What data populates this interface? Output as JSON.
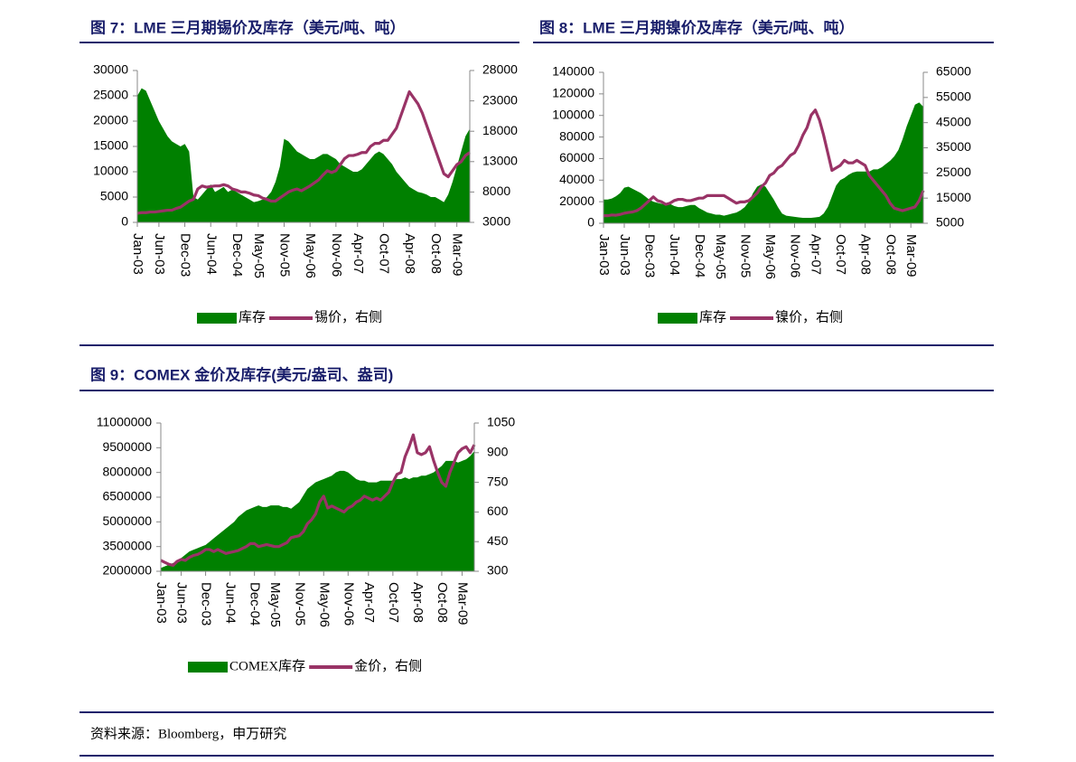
{
  "chart_data": [
    {
      "type": "combo",
      "title": "图 7：LME 三月期锡价及库存（美元/吨、吨）",
      "categories": [
        "Jan-03",
        null,
        null,
        null,
        null,
        "Jun-03",
        null,
        null,
        null,
        null,
        null,
        "Dec-03",
        null,
        null,
        null,
        null,
        null,
        "Jun-04",
        null,
        null,
        null,
        null,
        null,
        "Dec-04",
        null,
        null,
        null,
        null,
        "May-05",
        null,
        null,
        null,
        null,
        null,
        "Nov-05",
        null,
        null,
        null,
        null,
        null,
        "May-06",
        null,
        null,
        null,
        null,
        null,
        "Nov-06",
        null,
        null,
        null,
        null,
        "Apr-07",
        null,
        null,
        null,
        null,
        null,
        "Oct-07",
        null,
        null,
        null,
        null,
        null,
        "Apr-08",
        null,
        null,
        null,
        null,
        null,
        "Oct-08",
        null,
        null,
        null,
        null,
        "Mar-09",
        null,
        null,
        null
      ],
      "ylim": [
        0,
        30000
      ],
      "yticks": [
        0,
        5000,
        10000,
        15000,
        20000,
        25000,
        30000
      ],
      "y2lim": [
        3000,
        28000
      ],
      "y2ticks": [
        3000,
        8000,
        13000,
        18000,
        23000,
        28000
      ],
      "series": [
        {
          "name": "库存",
          "type": "area",
          "color": "#008000",
          "values": [
            25000,
            26500,
            26000,
            24000,
            22000,
            20000,
            18500,
            17000,
            16000,
            15500,
            15000,
            15500,
            14000,
            5000,
            4500,
            5500,
            6500,
            7500,
            6000,
            6500,
            7000,
            6000,
            6500,
            6000,
            5500,
            5000,
            4500,
            4000,
            4200,
            4500,
            5000,
            6000,
            8000,
            11000,
            16500,
            16000,
            15000,
            14000,
            13500,
            13000,
            12500,
            12500,
            13000,
            13500,
            13500,
            13000,
            12500,
            11500,
            11000,
            10500,
            10000,
            10000,
            10500,
            11500,
            12500,
            13500,
            14000,
            13500,
            12500,
            11500,
            10000,
            9000,
            8000,
            7000,
            6500,
            6000,
            5800,
            5500,
            5000,
            5000,
            4500,
            4000,
            5500,
            8000,
            11000,
            14000,
            17000,
            18500
          ]
        },
        {
          "name": "锡价，右侧",
          "type": "line",
          "axis": "y2",
          "color": "#993366",
          "values": [
            4500,
            4600,
            4600,
            4700,
            4700,
            4800,
            4900,
            5000,
            5000,
            5300,
            5500,
            6000,
            6500,
            6800,
            8500,
            9000,
            8800,
            8900,
            9000,
            9000,
            9200,
            9000,
            8500,
            8300,
            8000,
            8000,
            7800,
            7500,
            7400,
            7000,
            6800,
            6500,
            6500,
            7000,
            7500,
            8000,
            8300,
            8500,
            8200,
            8600,
            9000,
            9500,
            10000,
            10800,
            11500,
            11200,
            11500,
            12500,
            13500,
            14000,
            14000,
            14200,
            14500,
            14500,
            15500,
            16000,
            16000,
            16500,
            16500,
            17500,
            18500,
            20500,
            22500,
            24500,
            23500,
            22500,
            21000,
            19000,
            17000,
            15000,
            13000,
            11000,
            10500,
            11500,
            12500,
            13000,
            14000,
            14500
          ]
        }
      ]
    },
    {
      "type": "combo",
      "title": "图 8：LME 三月期镍价及库存（美元/吨、吨）",
      "categories": [
        "Jan-03",
        null,
        null,
        null,
        null,
        "Jun-03",
        null,
        null,
        null,
        null,
        null,
        "Dec-03",
        null,
        null,
        null,
        null,
        null,
        "Jun-04",
        null,
        null,
        null,
        null,
        null,
        "Dec-04",
        null,
        null,
        null,
        null,
        "May-05",
        null,
        null,
        null,
        null,
        null,
        "Nov-05",
        null,
        null,
        null,
        null,
        null,
        "May-06",
        null,
        null,
        null,
        null,
        null,
        "Nov-06",
        null,
        null,
        null,
        null,
        "Apr-07",
        null,
        null,
        null,
        null,
        null,
        "Oct-07",
        null,
        null,
        null,
        null,
        null,
        "Apr-08",
        null,
        null,
        null,
        null,
        null,
        "Oct-08",
        null,
        null,
        null,
        null,
        "Mar-09",
        null,
        null,
        null
      ],
      "ylim": [
        0,
        140000
      ],
      "yticks": [
        0,
        20000,
        40000,
        60000,
        80000,
        100000,
        120000,
        140000
      ],
      "y2lim": [
        5000,
        65000
      ],
      "y2ticks": [
        5000,
        15000,
        25000,
        35000,
        45000,
        55000,
        65000
      ],
      "series": [
        {
          "name": "库存",
          "type": "area",
          "color": "#008000",
          "values": [
            22000,
            22000,
            23000,
            25000,
            28000,
            33000,
            34000,
            32000,
            30000,
            28000,
            25000,
            22000,
            20000,
            19000,
            18000,
            17000,
            18000,
            16000,
            15000,
            15000,
            16000,
            17000,
            17000,
            14000,
            12000,
            10000,
            9000,
            8000,
            8000,
            7000,
            8000,
            9000,
            10000,
            12000,
            15000,
            20000,
            28000,
            34000,
            36000,
            34000,
            28000,
            22000,
            15000,
            9000,
            7000,
            6500,
            6000,
            5500,
            5000,
            5000,
            5000,
            5500,
            6000,
            9000,
            15000,
            25000,
            35000,
            40000,
            42000,
            45000,
            47000,
            48000,
            48000,
            48000,
            48000,
            50000,
            50000,
            52000,
            55000,
            58000,
            62000,
            68000,
            78000,
            90000,
            100000,
            110000,
            112000,
            108000
          ]
        },
        {
          "name": "镍价，右侧",
          "type": "line",
          "axis": "y2",
          "color": "#993366",
          "values": [
            8000,
            8000,
            8300,
            8200,
            8500,
            9000,
            9300,
            9500,
            10000,
            11000,
            12500,
            14000,
            15500,
            14000,
            13500,
            12500,
            13000,
            14000,
            14500,
            14500,
            14000,
            14000,
            14500,
            15000,
            15000,
            16000,
            16000,
            16000,
            16000,
            16000,
            15000,
            14000,
            13000,
            13500,
            13500,
            14000,
            15500,
            17000,
            19500,
            21000,
            24000,
            25000,
            27000,
            28000,
            30000,
            32000,
            33000,
            36000,
            40000,
            43000,
            48000,
            50000,
            46000,
            40000,
            33000,
            26000,
            27000,
            28000,
            30000,
            29000,
            29000,
            30000,
            29000,
            28000,
            24000,
            22000,
            20000,
            18000,
            16000,
            13000,
            11000,
            10500,
            10000,
            10500,
            11000,
            11500,
            14000,
            18000
          ]
        }
      ]
    },
    {
      "type": "combo",
      "title": "图 9：COMEX 金价及库存(美元/盎司、盎司)",
      "categories": [
        "Jan-03",
        null,
        null,
        null,
        null,
        "Jun-03",
        null,
        null,
        null,
        null,
        null,
        "Dec-03",
        null,
        null,
        null,
        null,
        null,
        "Jun-04",
        null,
        null,
        null,
        null,
        null,
        "Dec-04",
        null,
        null,
        null,
        null,
        "May-05",
        null,
        null,
        null,
        null,
        null,
        "Nov-05",
        null,
        null,
        null,
        null,
        null,
        "May-06",
        null,
        null,
        null,
        null,
        null,
        "Nov-06",
        null,
        null,
        null,
        null,
        "Apr-07",
        null,
        null,
        null,
        null,
        null,
        "Oct-07",
        null,
        null,
        null,
        null,
        null,
        "Apr-08",
        null,
        null,
        null,
        null,
        null,
        "Oct-08",
        null,
        null,
        null,
        null,
        "Mar-09",
        null,
        null,
        null
      ],
      "ylim": [
        2000000,
        11000000
      ],
      "yticks": [
        2000000,
        3500000,
        5000000,
        6500000,
        8000000,
        9500000,
        11000000
      ],
      "y2lim": [
        300,
        1050
      ],
      "y2ticks": [
        300,
        450,
        600,
        750,
        900,
        1050
      ],
      "series": [
        {
          "name": "COMEX库存",
          "type": "area",
          "color": "#008000",
          "values": [
            2200000,
            2300000,
            2400000,
            2500000,
            2600000,
            2800000,
            3000000,
            3200000,
            3300000,
            3400000,
            3500000,
            3600000,
            3800000,
            4000000,
            4200000,
            4400000,
            4600000,
            4800000,
            5000000,
            5300000,
            5500000,
            5700000,
            5800000,
            5900000,
            6000000,
            5900000,
            5900000,
            6000000,
            6000000,
            6000000,
            5900000,
            5900000,
            5800000,
            6000000,
            6200000,
            6600000,
            7000000,
            7200000,
            7400000,
            7500000,
            7600000,
            7700000,
            7800000,
            8000000,
            8100000,
            8100000,
            8000000,
            7800000,
            7600000,
            7500000,
            7500000,
            7400000,
            7400000,
            7400000,
            7500000,
            7500000,
            7500000,
            7500000,
            7600000,
            7600000,
            7700000,
            7600000,
            7700000,
            7700000,
            7800000,
            7800000,
            7900000,
            8000000,
            8200000,
            8400000,
            8700000,
            8700000,
            8700000,
            8600000,
            8700000,
            8800000,
            9000000,
            9300000
          ]
        },
        {
          "name": "金价，右侧",
          "type": "line",
          "axis": "y2",
          "color": "#993366",
          "values": [
            355,
            345,
            335,
            330,
            350,
            360,
            355,
            370,
            380,
            385,
            395,
            410,
            410,
            400,
            410,
            400,
            390,
            395,
            400,
            405,
            415,
            425,
            440,
            440,
            425,
            430,
            435,
            430,
            425,
            425,
            435,
            445,
            470,
            475,
            480,
            500,
            540,
            560,
            590,
            650,
            680,
            620,
            630,
            620,
            610,
            600,
            620,
            630,
            650,
            660,
            680,
            670,
            660,
            670,
            660,
            680,
            700,
            750,
            790,
            800,
            880,
            930,
            990,
            900,
            890,
            900,
            930,
            860,
            800,
            750,
            730,
            800,
            850,
            900,
            920,
            930,
            900,
            940
          ]
        }
      ]
    }
  ],
  "source": "资料来源：Bloomberg，申万研究"
}
